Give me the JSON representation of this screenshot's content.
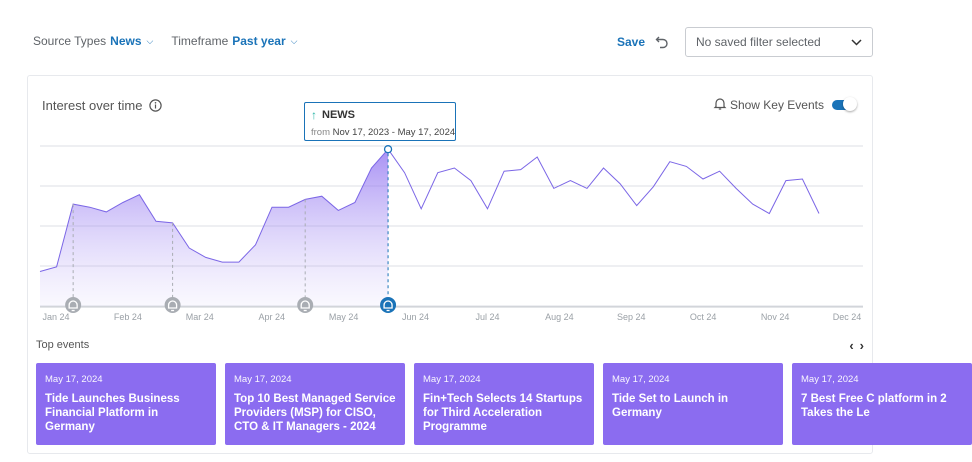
{
  "filters": {
    "source_types_label": "Source Types",
    "source_types_value": "News",
    "timeframe_label": "Timeframe",
    "timeframe_value": "Past year"
  },
  "actions": {
    "save_label": "Save",
    "saved_filter_value": "No saved filter selected"
  },
  "panel": {
    "title": "Interest over time",
    "key_events_label": "Show Key Events",
    "key_events_enabled": true
  },
  "tooltip": {
    "label": "NEWS",
    "from_prefix": "from",
    "range": "Nov 17, 2023 - May 17, 2024"
  },
  "chart_data": {
    "type": "area",
    "x_tick_labels": [
      "Jan 24",
      "Feb 24",
      "Mar 24",
      "Apr 24",
      "May 24",
      "Jun 24",
      "Jul 24",
      "Aug 24",
      "Sep 24",
      "Oct 24",
      "Nov 24",
      "Dec 24"
    ],
    "y_gridlines": 5,
    "y_range": [
      0,
      100
    ],
    "series": [
      {
        "values": [
          22,
          25,
          65,
          63,
          60,
          66,
          71,
          54,
          53,
          37,
          31,
          28,
          28,
          39,
          63,
          63,
          68,
          70,
          61,
          66,
          88,
          100,
          85,
          62,
          85,
          88,
          80,
          62,
          86,
          87,
          95,
          75,
          80,
          75,
          88,
          78,
          64,
          76,
          92,
          89,
          81,
          86,
          75,
          65,
          59,
          80,
          81,
          59
        ],
        "highlight_index": 21
      }
    ],
    "key_event_indices": [
      2,
      8,
      16,
      21
    ],
    "highlight_color": "#1a73b8",
    "line_color": "#7b66e6"
  },
  "top_events": {
    "label": "Top events",
    "cards": [
      {
        "date": "May 17, 2024",
        "title": "Tide Launches Business Financial Platform in Germany"
      },
      {
        "date": "May 17, 2024",
        "title": "Top 10 Best Managed Service Providers (MSP) for CISO, CTO & IT Managers - 2024"
      },
      {
        "date": "May 17, 2024",
        "title": "Fin+Tech Selects 14 Startups for Third Acceleration Programme"
      },
      {
        "date": "May 17, 2024",
        "title": "Tide Set to Launch in Germany"
      },
      {
        "date": "May 17, 2024",
        "title": "7 Best Free C platform in 2 Takes the Le"
      }
    ]
  }
}
